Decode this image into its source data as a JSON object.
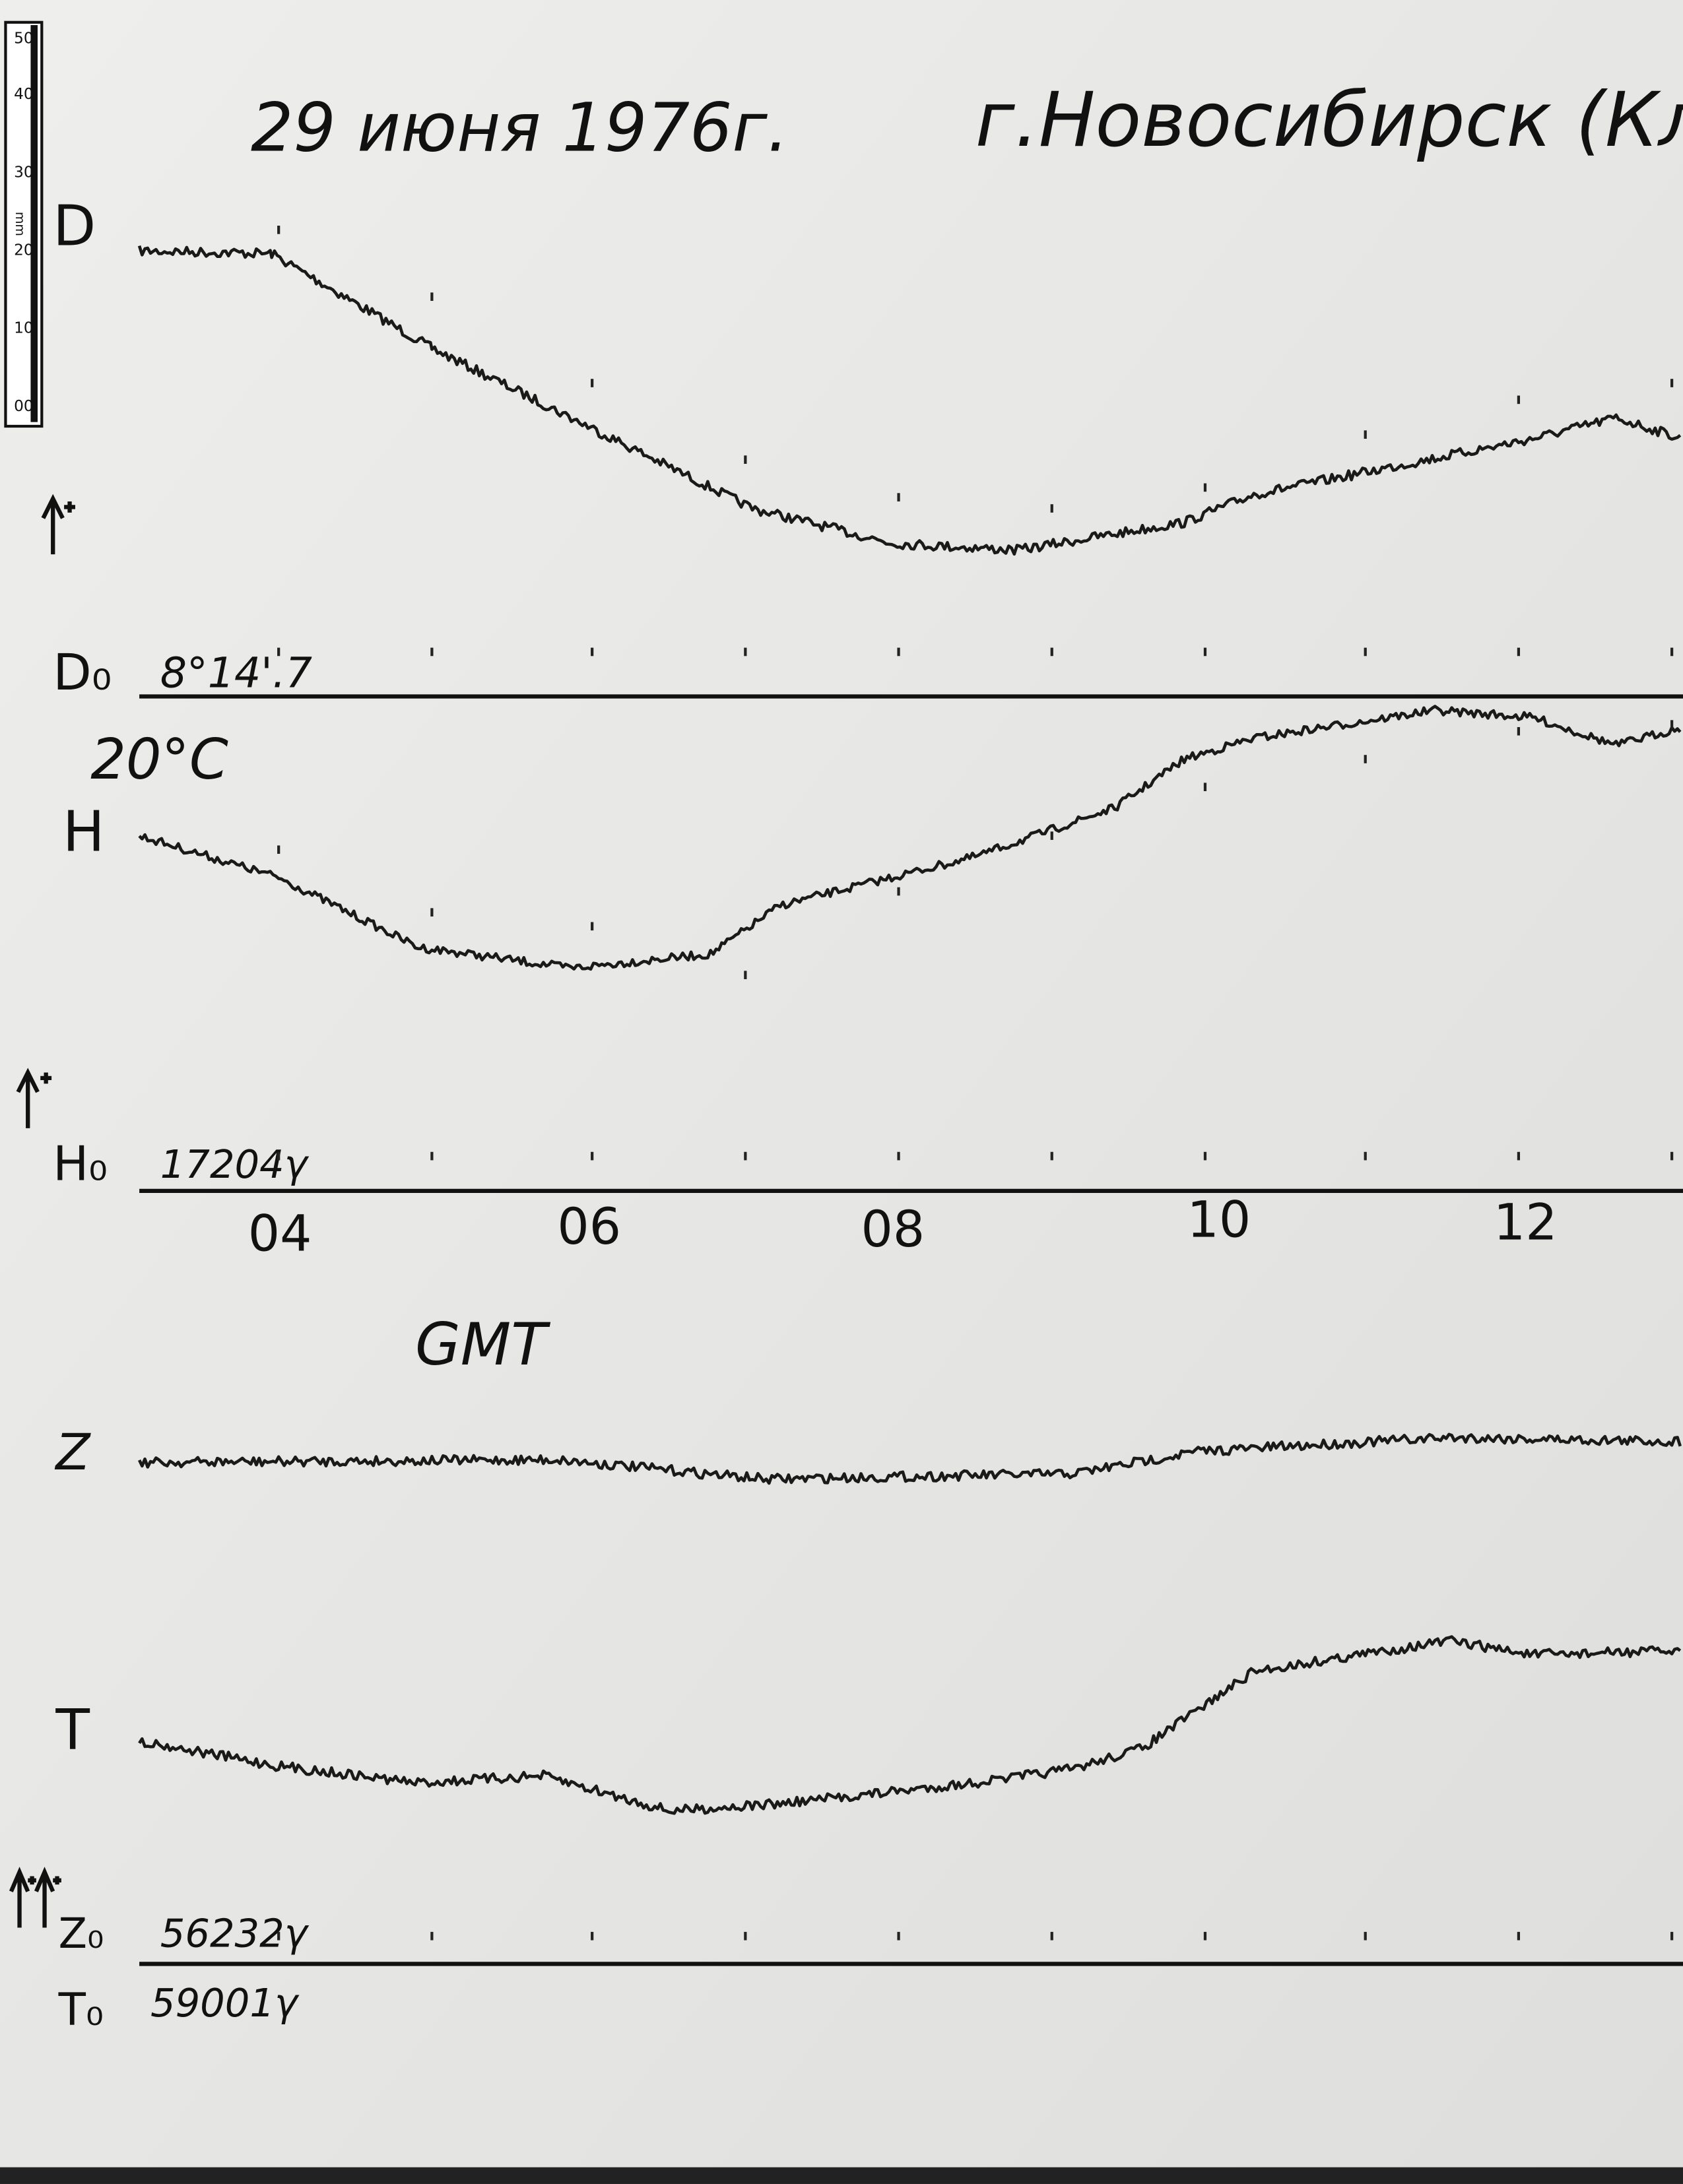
{
  "header": {
    "date": "29 июня 1976г.",
    "place": "г.Новосибирск (Клн"
  },
  "ruler": {
    "ticks": [
      "50",
      "40",
      "30",
      "20",
      "10",
      "00"
    ],
    "unit": "mm"
  },
  "traces": [
    {
      "label": "D",
      "base_label": "D₀",
      "base_value": "8°14'.7"
    },
    {
      "label": "H",
      "base_label": "H₀",
      "base_value": "17204γ",
      "note": "20°C"
    },
    {
      "label": "Z",
      "base_label": "Z₀",
      "base_value": "56232γ"
    },
    {
      "label": "T",
      "base_label": "T₀",
      "base_value": "59001γ"
    }
  ],
  "time_axis": {
    "labels": [
      "04",
      "06",
      "08",
      "10",
      "12"
    ],
    "unit": "GMT"
  }
}
